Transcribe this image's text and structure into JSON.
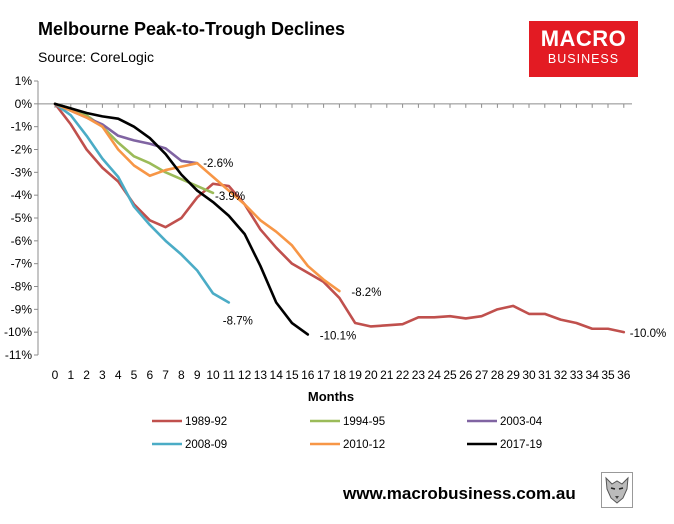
{
  "header": {
    "title": "Melbourne Peak-to-Trough Declines",
    "source": "Source: CoreLogic"
  },
  "logo": {
    "line1": "MACRO",
    "line2": "BUSINESS"
  },
  "footer": {
    "url": "www.macrobusiness.com.au"
  },
  "chart_data": {
    "type": "line",
    "xlabel": "Months",
    "ylabel": "",
    "xlim": [
      0,
      36
    ],
    "ylim": [
      -11,
      1
    ],
    "x_ticks": [
      "0",
      "1",
      "2",
      "3",
      "4",
      "5",
      "6",
      "7",
      "8",
      "9",
      "10",
      "11",
      "12",
      "13",
      "14",
      "15",
      "16",
      "17",
      "18",
      "19",
      "20",
      "21",
      "22",
      "23",
      "24",
      "25",
      "26",
      "27",
      "28",
      "29",
      "30",
      "31",
      "32",
      "33",
      "34",
      "35",
      "36"
    ],
    "y_ticks": [
      "1%",
      "0%",
      "-1%",
      "-2%",
      "-3%",
      "-4%",
      "-5%",
      "-6%",
      "-7%",
      "-8%",
      "-9%",
      "-10%",
      "-11%"
    ],
    "grid": false,
    "legend_position": "bottom",
    "series": [
      {
        "name": "1989-92",
        "color": "#c0504d",
        "x": [
          0,
          1,
          2,
          3,
          4,
          5,
          6,
          7,
          8,
          9,
          10,
          11,
          12,
          13,
          14,
          15,
          16,
          17,
          18,
          19,
          20,
          21,
          22,
          23,
          24,
          25,
          26,
          27,
          28,
          29,
          30,
          31,
          32,
          33,
          34,
          35,
          36
        ],
        "values": [
          0,
          -0.9,
          -2.0,
          -2.8,
          -3.4,
          -4.4,
          -5.1,
          -5.4,
          -5.0,
          -4.1,
          -3.5,
          -3.6,
          -4.4,
          -5.5,
          -6.3,
          -7.0,
          -7.4,
          -7.8,
          -8.5,
          -9.6,
          -9.75,
          -9.7,
          -9.65,
          -9.35,
          -9.35,
          -9.3,
          -9.4,
          -9.3,
          -9.0,
          -8.85,
          -9.2,
          -9.2,
          -9.45,
          -9.6,
          -9.85,
          -9.85,
          -10.0
        ],
        "end_label": "-10.0%"
      },
      {
        "name": "1994-95",
        "color": "#9bbb59",
        "x": [
          0,
          1,
          2,
          3,
          4,
          5,
          6,
          7,
          8,
          9,
          10
        ],
        "values": [
          0,
          -0.2,
          -0.5,
          -1.0,
          -1.7,
          -2.3,
          -2.6,
          -3.0,
          -3.3,
          -3.6,
          -3.9
        ],
        "end_label": "-3.9%"
      },
      {
        "name": "2003-04",
        "color": "#8064a2",
        "x": [
          0,
          1,
          2,
          3,
          4,
          5,
          6,
          7,
          8,
          9
        ],
        "values": [
          0,
          -0.3,
          -0.6,
          -0.9,
          -1.4,
          -1.6,
          -1.75,
          -1.95,
          -2.5,
          -2.6
        ],
        "end_label": "-2.6%"
      },
      {
        "name": "2008-09",
        "color": "#4bacc6",
        "x": [
          0,
          1,
          2,
          3,
          4,
          5,
          6,
          7,
          8,
          9,
          10,
          11
        ],
        "values": [
          0,
          -0.5,
          -1.4,
          -2.4,
          -3.2,
          -4.5,
          -5.3,
          -6.0,
          -6.6,
          -7.3,
          -8.3,
          -8.7
        ],
        "end_label": "-8.7%"
      },
      {
        "name": "2010-12",
        "color": "#f79646",
        "x": [
          0,
          1,
          2,
          3,
          4,
          5,
          6,
          7,
          8,
          9,
          10,
          11,
          12,
          13,
          14,
          15,
          16,
          17,
          18
        ],
        "values": [
          0,
          -0.3,
          -0.6,
          -1.0,
          -2.0,
          -2.7,
          -3.15,
          -2.9,
          -2.75,
          -2.6,
          -3.2,
          -3.8,
          -4.4,
          -5.1,
          -5.6,
          -6.2,
          -7.1,
          -7.7,
          -8.2
        ],
        "end_label": "-8.2%"
      },
      {
        "name": "2017-19",
        "color": "#000000",
        "x": [
          0,
          1,
          2,
          3,
          4,
          5,
          6,
          7,
          8,
          9,
          10,
          11,
          12,
          13,
          14,
          15,
          16
        ],
        "values": [
          0,
          -0.2,
          -0.4,
          -0.55,
          -0.65,
          -1.0,
          -1.5,
          -2.2,
          -3.1,
          -3.8,
          -4.3,
          -4.9,
          -5.7,
          -7.1,
          -8.7,
          -9.6,
          -10.1
        ],
        "end_label": "-10.1%"
      }
    ]
  }
}
